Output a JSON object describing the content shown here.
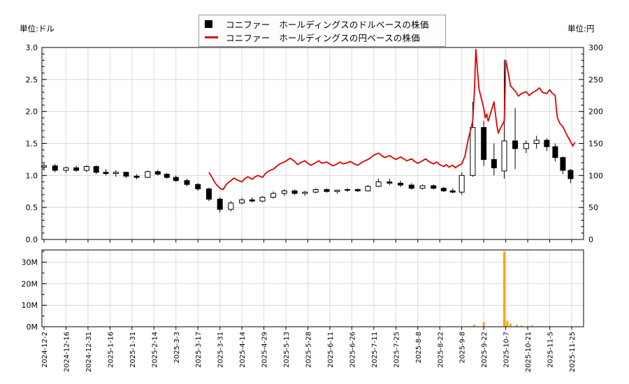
{
  "legend": {
    "items": [
      {
        "marker": "black-square-marker",
        "label": "コニファー　ホールディングスのドルベースの株価"
      },
      {
        "marker": "red-line-marker",
        "label": "コニファー　ホールディングスの円ベースの株価"
      }
    ]
  },
  "axes": {
    "left_unit": "単位:ドル",
    "right_unit": "単位:円"
  },
  "colors": {
    "up_candle": "#ffffff",
    "down_candle": "#000000",
    "yen_line": "#e00000",
    "volume_bar": "#ffa500",
    "grid": "#d9d9d9",
    "axis": "#000000"
  },
  "chart_data": [
    {
      "type": "candlestick",
      "title": "",
      "x_ticks": [
        "2024-12-2",
        "2024-12-16",
        "2024-12-31",
        "2025-1-16",
        "2025-1-31",
        "2025-2-14",
        "2025-3-3",
        "2025-3-17",
        "2025-3-31",
        "2025-4-14",
        "2025-4-29",
        "2025-5-13",
        "2025-5-28",
        "2025-6-11",
        "2025-6-26",
        "2025-7-11",
        "2025-7-25",
        "2025-8-8",
        "2025-8-22",
        "2025-9-8",
        "2025-9-22",
        "2025-10-7",
        "2025-10-21",
        "2025-11-5",
        "2025-11-25"
      ],
      "left_axis": {
        "unit": "単位:ドル",
        "range": [
          0.0,
          3.0
        ],
        "ticks": [
          "3.0",
          "2.5",
          "2.0",
          "1.5",
          "1.0",
          "0.5",
          "0.0"
        ]
      },
      "right_axis": {
        "unit": "単位:円",
        "range": [
          0,
          300
        ],
        "ticks": [
          "300",
          "250",
          "200",
          "150",
          "100",
          "50",
          "0"
        ]
      },
      "grid": true,
      "legend_position": "top-center",
      "series": [
        {
          "name": "コニファー　ホールディングスのドルベースの株価",
          "type": "candlestick",
          "unit": "ドル",
          "color": "#000000",
          "ohlc": [
            [
              "2024-12-2",
              1.13,
              1.2,
              1.08,
              1.15
            ],
            [
              "2024-12-9",
              1.15,
              1.18,
              1.05,
              1.08
            ],
            [
              "2024-12-16",
              1.08,
              1.14,
              1.04,
              1.12
            ],
            [
              "2024-12-23",
              1.12,
              1.15,
              1.06,
              1.08
            ],
            [
              "2024-12-30",
              1.08,
              1.16,
              1.05,
              1.14
            ],
            [
              "2025-1-6",
              1.14,
              1.16,
              1.02,
              1.05
            ],
            [
              "2025-1-13",
              1.05,
              1.1,
              1.0,
              1.03
            ],
            [
              "2025-1-20",
              1.03,
              1.08,
              0.98,
              1.05
            ],
            [
              "2025-1-27",
              1.05,
              1.06,
              0.96,
              0.99
            ],
            [
              "2025-2-3",
              0.99,
              1.02,
              0.94,
              0.97
            ],
            [
              "2025-2-10",
              0.97,
              1.08,
              0.96,
              1.06
            ],
            [
              "2025-2-17",
              1.06,
              1.09,
              1.0,
              1.02
            ],
            [
              "2025-2-24",
              1.02,
              1.04,
              0.95,
              0.97
            ],
            [
              "2025-3-3",
              0.97,
              1.0,
              0.9,
              0.92
            ],
            [
              "2025-3-10",
              0.92,
              0.95,
              0.83,
              0.86
            ],
            [
              "2025-3-17",
              0.86,
              0.88,
              0.76,
              0.79
            ],
            [
              "2025-3-24",
              0.79,
              0.81,
              0.6,
              0.63
            ],
            [
              "2025-3-31",
              0.63,
              0.66,
              0.42,
              0.47
            ],
            [
              "2025-4-7",
              0.47,
              0.6,
              0.44,
              0.57
            ],
            [
              "2025-4-14",
              0.57,
              0.65,
              0.55,
              0.62
            ],
            [
              "2025-4-21",
              0.62,
              0.66,
              0.58,
              0.6
            ],
            [
              "2025-4-28",
              0.6,
              0.68,
              0.58,
              0.66
            ],
            [
              "2025-5-5",
              0.66,
              0.75,
              0.64,
              0.72
            ],
            [
              "2025-5-12",
              0.72,
              0.79,
              0.68,
              0.76
            ],
            [
              "2025-5-19",
              0.76,
              0.78,
              0.7,
              0.72
            ],
            [
              "2025-5-26",
              0.72,
              0.76,
              0.68,
              0.74
            ],
            [
              "2025-6-2",
              0.74,
              0.8,
              0.72,
              0.78
            ],
            [
              "2025-6-9",
              0.78,
              0.8,
              0.73,
              0.75
            ],
            [
              "2025-6-16",
              0.75,
              0.78,
              0.72,
              0.77
            ],
            [
              "2025-6-23",
              0.77,
              0.8,
              0.74,
              0.78
            ],
            [
              "2025-6-30",
              0.78,
              0.8,
              0.74,
              0.76
            ],
            [
              "2025-7-7",
              0.76,
              0.85,
              0.75,
              0.83
            ],
            [
              "2025-7-14",
              0.83,
              0.95,
              0.82,
              0.9
            ],
            [
              "2025-7-21",
              0.9,
              0.95,
              0.85,
              0.88
            ],
            [
              "2025-7-28",
              0.88,
              0.92,
              0.82,
              0.85
            ],
            [
              "2025-8-4",
              0.85,
              0.88,
              0.78,
              0.8
            ],
            [
              "2025-8-11",
              0.8,
              0.86,
              0.78,
              0.84
            ],
            [
              "2025-8-18",
              0.84,
              0.86,
              0.78,
              0.8
            ],
            [
              "2025-8-25",
              0.8,
              0.82,
              0.74,
              0.76
            ],
            [
              "2025-9-1",
              0.76,
              0.8,
              0.72,
              0.74
            ],
            [
              "2025-9-8",
              0.74,
              1.05,
              0.7,
              1.0
            ],
            [
              "2025-9-15",
              1.0,
              2.15,
              0.98,
              1.75
            ],
            [
              "2025-9-22",
              1.75,
              1.85,
              1.15,
              1.25
            ],
            [
              "2025-9-29",
              1.25,
              1.5,
              1.0,
              1.12
            ],
            [
              "2025-10-6",
              1.07,
              2.81,
              0.95,
              1.54
            ],
            [
              "2025-10-13",
              1.54,
              2.05,
              1.1,
              1.42
            ],
            [
              "2025-10-20",
              1.42,
              1.55,
              1.35,
              1.5
            ],
            [
              "2025-10-27",
              1.5,
              1.62,
              1.42,
              1.55
            ],
            [
              "2025-11-3",
              1.55,
              1.58,
              1.38,
              1.45
            ],
            [
              "2025-11-10",
              1.45,
              1.5,
              1.22,
              1.28
            ],
            [
              "2025-11-17",
              1.28,
              1.3,
              1.02,
              1.08
            ],
            [
              "2025-11-24",
              1.08,
              1.1,
              0.88,
              0.95
            ]
          ]
        },
        {
          "name": "コニファー　ホールディングスの円ベースの株価",
          "type": "line",
          "unit": "円",
          "color": "#e00000",
          "points": [
            [
              "2025-3-24",
              105
            ],
            [
              "2025-3-26",
              97
            ],
            [
              "2025-3-28",
              88
            ],
            [
              "2025-3-31",
              80
            ],
            [
              "2025-4-2",
              78
            ],
            [
              "2025-4-4",
              86
            ],
            [
              "2025-4-7",
              92
            ],
            [
              "2025-4-9",
              96
            ],
            [
              "2025-4-11",
              93
            ],
            [
              "2025-4-14",
              90
            ],
            [
              "2025-4-16",
              95
            ],
            [
              "2025-4-18",
              98
            ],
            [
              "2025-4-21",
              94
            ],
            [
              "2025-4-23",
              98
            ],
            [
              "2025-4-25",
              100
            ],
            [
              "2025-4-28",
              97
            ],
            [
              "2025-4-30",
              103
            ],
            [
              "2025-5-2",
              107
            ],
            [
              "2025-5-5",
              110
            ],
            [
              "2025-5-7",
              114
            ],
            [
              "2025-5-9",
              118
            ],
            [
              "2025-5-12",
              121
            ],
            [
              "2025-5-14",
              124
            ],
            [
              "2025-5-16",
              127
            ],
            [
              "2025-5-19",
              122
            ],
            [
              "2025-5-21",
              117
            ],
            [
              "2025-5-23",
              120
            ],
            [
              "2025-5-26",
              123
            ],
            [
              "2025-5-28",
              119
            ],
            [
              "2025-5-30",
              116
            ],
            [
              "2025-6-2",
              120
            ],
            [
              "2025-6-4",
              123
            ],
            [
              "2025-6-6",
              119
            ],
            [
              "2025-6-9",
              121
            ],
            [
              "2025-6-11",
              118
            ],
            [
              "2025-6-13",
              115
            ],
            [
              "2025-6-16",
              118
            ],
            [
              "2025-6-18",
              121
            ],
            [
              "2025-6-20",
              118
            ],
            [
              "2025-6-23",
              120
            ],
            [
              "2025-6-25",
              122
            ],
            [
              "2025-6-27",
              119
            ],
            [
              "2025-6-30",
              116
            ],
            [
              "2025-7-2",
              119
            ],
            [
              "2025-7-4",
              122
            ],
            [
              "2025-7-7",
              125
            ],
            [
              "2025-7-9",
              128
            ],
            [
              "2025-7-11",
              132
            ],
            [
              "2025-7-14",
              135
            ],
            [
              "2025-7-16",
              131
            ],
            [
              "2025-7-18",
              128
            ],
            [
              "2025-7-21",
              131
            ],
            [
              "2025-7-23",
              128
            ],
            [
              "2025-7-25",
              125
            ],
            [
              "2025-7-28",
              129
            ],
            [
              "2025-7-30",
              126
            ],
            [
              "2025-8-1",
              123
            ],
            [
              "2025-8-4",
              126
            ],
            [
              "2025-8-6",
              122
            ],
            [
              "2025-8-8",
              119
            ],
            [
              "2025-8-11",
              123
            ],
            [
              "2025-8-13",
              126
            ],
            [
              "2025-8-15",
              122
            ],
            [
              "2025-8-18",
              118
            ],
            [
              "2025-8-20",
              121
            ],
            [
              "2025-8-22",
              117
            ],
            [
              "2025-8-25",
              114
            ],
            [
              "2025-8-27",
              117
            ],
            [
              "2025-8-29",
              113
            ],
            [
              "2025-9-1",
              116
            ],
            [
              "2025-9-3",
              112
            ],
            [
              "2025-9-5",
              115
            ],
            [
              "2025-9-8",
              118
            ],
            [
              "2025-9-10",
              130
            ],
            [
              "2025-9-12",
              155
            ],
            [
              "2025-9-15",
              185
            ],
            [
              "2025-9-16",
              230
            ],
            [
              "2025-9-17",
              297
            ],
            [
              "2025-9-18",
              265
            ],
            [
              "2025-9-19",
              235
            ],
            [
              "2025-9-22",
              205
            ],
            [
              "2025-9-23",
              190
            ],
            [
              "2025-9-24",
              196
            ],
            [
              "2025-9-25",
              185
            ],
            [
              "2025-9-26",
              192
            ],
            [
              "2025-9-29",
              215
            ],
            [
              "2025-9-30",
              196
            ],
            [
              "2025-10-1",
              178
            ],
            [
              "2025-10-2",
              166
            ],
            [
              "2025-10-3",
              172
            ],
            [
              "2025-10-6",
              185
            ],
            [
              "2025-10-7",
              280
            ],
            [
              "2025-10-8",
              268
            ],
            [
              "2025-10-9",
              255
            ],
            [
              "2025-10-10",
              240
            ],
            [
              "2025-10-13",
              232
            ],
            [
              "2025-10-15",
              224
            ],
            [
              "2025-10-17",
              228
            ],
            [
              "2025-10-20",
              231
            ],
            [
              "2025-10-22",
              225
            ],
            [
              "2025-10-24",
              229
            ],
            [
              "2025-10-27",
              233
            ],
            [
              "2025-10-29",
              237
            ],
            [
              "2025-10-31",
              230
            ],
            [
              "2025-11-3",
              228
            ],
            [
              "2025-11-5",
              234
            ],
            [
              "2025-11-7",
              229
            ],
            [
              "2025-11-10",
              225
            ],
            [
              "2025-11-11",
              205
            ],
            [
              "2025-11-12",
              190
            ],
            [
              "2025-11-14",
              182
            ],
            [
              "2025-11-17",
              176
            ],
            [
              "2025-11-19",
              169
            ],
            [
              "2025-11-21",
              162
            ],
            [
              "2025-11-24",
              153
            ],
            [
              "2025-11-26",
              146
            ],
            [
              "2025-11-28",
              152
            ]
          ]
        }
      ]
    },
    {
      "type": "bar",
      "name": "volume",
      "color": "#ffa500",
      "ylabel": "",
      "y_ticks": [
        "30M",
        "20M",
        "10M",
        "0M"
      ],
      "ylim": [
        0,
        35.7
      ],
      "unit": "M",
      "bars": [
        [
          "2025-9-16",
          0.9
        ],
        [
          "2025-9-22",
          2.1
        ],
        [
          "2025-10-6",
          35.0
        ],
        [
          "2025-10-8",
          2.8
        ],
        [
          "2025-10-10",
          1.4
        ],
        [
          "2025-10-14",
          0.9
        ],
        [
          "2025-10-17",
          0.5
        ],
        [
          "2025-10-24",
          0.6
        ],
        [
          "2025-11-7",
          0.3
        ]
      ]
    }
  ]
}
